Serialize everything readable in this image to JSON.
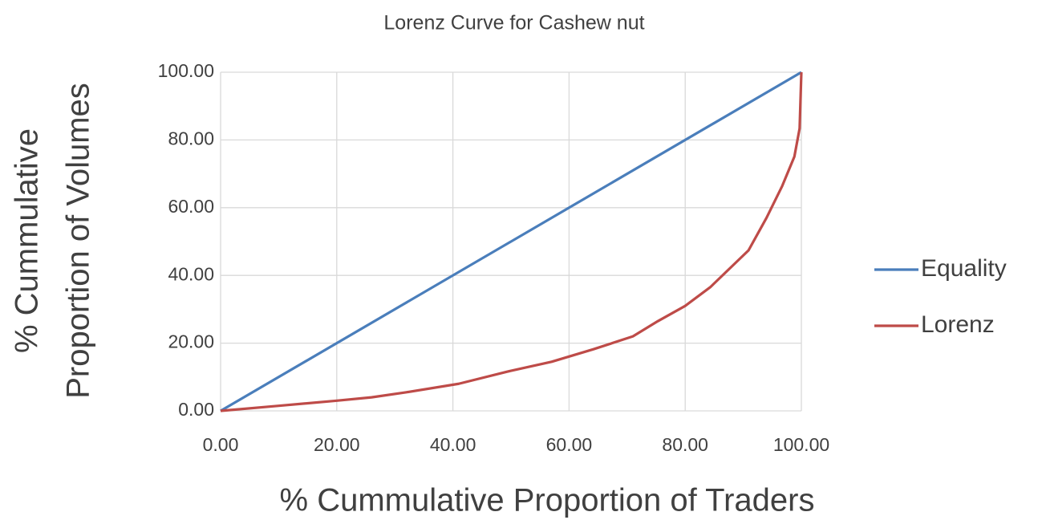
{
  "chart_data": {
    "type": "line",
    "title": "Lorenz Curve for Cashew nut",
    "x_label": "% Cummulative Proportion of Traders",
    "y_label": [
      "% Cummulative",
      "Proportion of Volumes"
    ],
    "series": [
      {
        "name": "Equality",
        "color": "#4a7ebb",
        "x": [
          0,
          100
        ],
        "values": [
          0,
          100
        ]
      },
      {
        "name": "Lorenz",
        "color": "#be4b48",
        "x": [
          0,
          10,
          20,
          26,
          32,
          41,
          49.4,
          57,
          64.2,
          71,
          75.3,
          80,
          84.3,
          90.9,
          94,
          96.7,
          98.8,
          99.7,
          100
        ],
        "values": [
          0,
          1.5,
          3,
          4,
          5.5,
          8,
          11.6,
          14.5,
          18.2,
          22,
          26.5,
          31,
          36.5,
          47.4,
          57,
          66.4,
          75.1,
          83.4,
          100
        ]
      }
    ],
    "xlim": [
      0,
      100
    ],
    "ylim": [
      0,
      100
    ],
    "xticks": [
      {
        "value": 0,
        "label": "0.00"
      },
      {
        "value": 20,
        "label": "20.00"
      },
      {
        "value": 40,
        "label": "40.00"
      },
      {
        "value": 60,
        "label": "60.00"
      },
      {
        "value": 80,
        "label": "80.00"
      },
      {
        "value": 100,
        "label": "100.00"
      }
    ],
    "yticks": [
      {
        "value": 0,
        "label": "0.00"
      },
      {
        "value": 20,
        "label": "20.00"
      },
      {
        "value": 40,
        "label": "40.00"
      },
      {
        "value": 60,
        "label": "60.00"
      },
      {
        "value": 80,
        "label": "80.00"
      },
      {
        "value": 100,
        "label": "100.00"
      }
    ],
    "grid": true,
    "legend": "right"
  }
}
